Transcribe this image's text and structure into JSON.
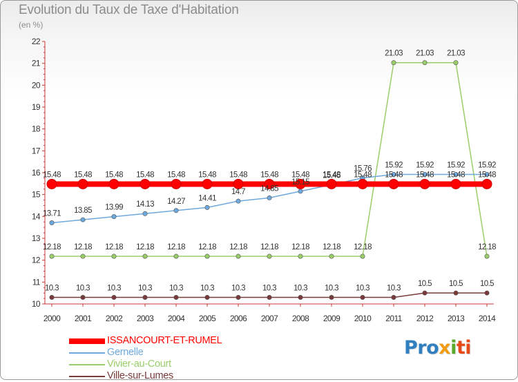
{
  "chart_data": {
    "type": "line",
    "title": "Evolution du Taux de Taxe d'Habitation",
    "subtitle": "(en %)",
    "x": [
      2000,
      2001,
      2002,
      2003,
      2004,
      2005,
      2006,
      2007,
      2008,
      2009,
      2010,
      2011,
      2012,
      2013,
      2014
    ],
    "ylim": [
      10,
      22
    ],
    "yticks": [
      10,
      11,
      12,
      13,
      14,
      15,
      16,
      17,
      18,
      19,
      20,
      21,
      22
    ],
    "grid": false,
    "legend_position": "bottom-left",
    "series": [
      {
        "name": "ISSANCOURT-ET-RUMEL",
        "color": "#ff0000",
        "values": [
          15.48,
          15.48,
          15.48,
          15.48,
          15.48,
          15.48,
          15.48,
          15.48,
          15.48,
          15.48,
          15.48,
          15.48,
          15.48,
          15.48,
          15.48
        ],
        "labels": [
          "15.48",
          "15.48",
          "15.48",
          "15.48",
          "15.48",
          "15.48",
          "15.48",
          "15.48",
          "15.48",
          "15.48",
          "15.48",
          "15.48",
          "15.48",
          "15.48",
          "15.48"
        ]
      },
      {
        "name": "Gernelle",
        "color": "#6fa8dc",
        "values": [
          13.71,
          13.85,
          13.99,
          14.13,
          14.27,
          14.41,
          14.7,
          14.85,
          15.15,
          15.45,
          15.76,
          15.92,
          15.92,
          15.92,
          15.92
        ],
        "labels": [
          "13.71",
          "13.85",
          "13.99",
          "14.13",
          "14.27",
          "14.41",
          "14.7",
          "14.85",
          "15.15",
          "15.45",
          "15.76",
          "15.92",
          "15.92",
          "15.92",
          "15.92"
        ]
      },
      {
        "name": "Vivier-au-Court",
        "color": "#9acd6a",
        "values": [
          12.18,
          12.18,
          12.18,
          12.18,
          12.18,
          12.18,
          12.18,
          12.18,
          12.18,
          12.18,
          12.18,
          21.03,
          21.03,
          21.03,
          12.18
        ],
        "labels": [
          "12.18",
          "12.18",
          "12.18",
          "12.18",
          "12.18",
          "12.18",
          "12.18",
          "12.18",
          "12.18",
          "12.18",
          "12.18",
          "21.03",
          "21.03",
          "21.03",
          "12.18"
        ]
      },
      {
        "name": "Ville-sur-Lumes",
        "color": "#7a3a3a",
        "values": [
          10.3,
          10.3,
          10.3,
          10.3,
          10.3,
          10.3,
          10.3,
          10.3,
          10.3,
          10.3,
          10.3,
          10.3,
          10.5,
          10.5,
          10.5
        ],
        "labels": [
          "10.3",
          "10.3",
          "10.3",
          "10.3",
          "10.3",
          "10.3",
          "10.3",
          "10.3",
          "10.3",
          "10.3",
          "10.3",
          "10.3",
          "10.5",
          "10.5",
          "10.5"
        ]
      }
    ]
  },
  "logo": {
    "p1": "Pro",
    "p2": "x",
    "p3": "i",
    "p4": "ti"
  }
}
